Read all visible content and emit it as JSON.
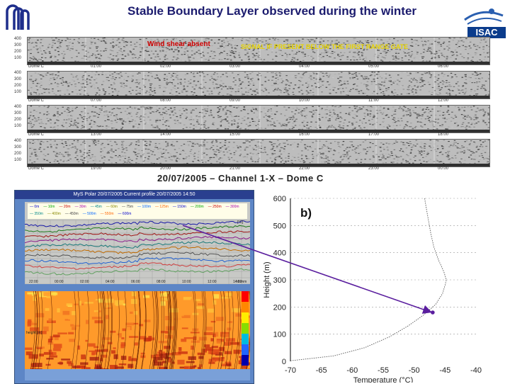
{
  "header": {
    "title": "Stable Boundary Layer observed during the winter",
    "logo_right_text": "ISAC"
  },
  "sodar": {
    "annotation_red": "Wind shear absent",
    "annotation_yellow": "SIGNAL IF PRESENT BELOW THE FIRST RANGE GATE",
    "caption": "20/07/2005 – Channel 1-X – Dome C",
    "strip_labels": [
      "Dome C",
      "Dome C",
      "Dome C",
      "Dome C"
    ],
    "strips": [
      {
        "times": [
          "00:00",
          "01:00",
          "02:00",
          "03:00",
          "04:00",
          "05:00",
          "06:00"
        ]
      },
      {
        "times": [
          "06:00",
          "07:00",
          "08:00",
          "09:00",
          "10:00",
          "11:00",
          "12:00"
        ]
      },
      {
        "times": [
          "12:00",
          "13:00",
          "14:00",
          "15:00",
          "16:00",
          "17:00",
          "18:00"
        ]
      },
      {
        "times": [
          "18:00",
          "19:00",
          "20:00",
          "21:00",
          "22:00",
          "23:00",
          "00:00"
        ]
      }
    ],
    "y_ticks": [
      "400",
      "300",
      "200",
      "100"
    ]
  },
  "instrument": {
    "title": "MyS Polar 20/07/2005 Current profile 20/07/2005 14:50",
    "legend": [
      "0m",
      "10m",
      "20m",
      "30m",
      "45m",
      "60m",
      "75m",
      "100m",
      "125m",
      "150m",
      "200m",
      "250m",
      "300m",
      "350m",
      "400m",
      "450m",
      "500m",
      "550m",
      "600m"
    ],
    "x_ticks": [
      "22:00",
      "00:00",
      "02:00",
      "04:00",
      "06:00",
      "08:00",
      "10:00",
      "12:00",
      "14:00"
    ],
    "x_label": "hh:mm",
    "y_label_top": "[°C]",
    "y_label_bottom": "height [m]"
  },
  "chart_data": {
    "type": "line",
    "title": "",
    "panel_label": "b)",
    "xlabel": "Temperature (°C)",
    "ylabel": "Height (m)",
    "xlim": [
      -70,
      -40
    ],
    "ylim": [
      0,
      600
    ],
    "x_ticks": [
      -70,
      -65,
      -60,
      -55,
      -50,
      -45,
      -40
    ],
    "y_ticks": [
      0,
      100,
      200,
      300,
      400,
      500,
      600
    ],
    "series": [
      {
        "x": [
          -70.0,
          -63.0,
          -58.0,
          -54.0,
          -51.0,
          -48.5,
          -46.5,
          -45.4,
          -45.0,
          -44.8,
          -45.2,
          -46.0,
          -46.8,
          -47.3,
          -47.7,
          -48.0,
          -48.3
        ],
        "y": [
          2,
          20,
          50,
          90,
          130,
          170,
          210,
          250,
          280,
          300,
          330,
          370,
          420,
          470,
          520,
          560,
          600
        ]
      }
    ],
    "marker": {
      "x": -47.0,
      "y": 180
    }
  },
  "colors": {
    "arrow": "#5a1e9e",
    "title": "#1b1b6e",
    "annot_red": "#d00000",
    "annot_yellow": "#e6d200"
  }
}
